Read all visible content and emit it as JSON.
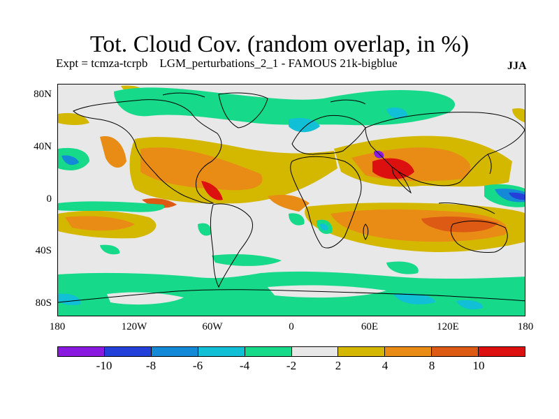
{
  "title": "Tot. Cloud Cov. (random overlap, in %)",
  "subtitle": "Expt = tcmza-tcrpb    LGM_perturbations_2_1 - FAMOUS 21k-bigblue",
  "season": "JJA",
  "lat_labels": [
    "80N",
    "40N",
    "0",
    "40S",
    "80S"
  ],
  "lon_labels": [
    "180",
    "120W",
    "60W",
    "0",
    "60E",
    "120E",
    "180"
  ],
  "colorbar": {
    "colors": [
      "#8a1adf",
      "#2341d8",
      "#1489d7",
      "#11bfd6",
      "#16d98a",
      "#e8e8e8",
      "#d4b800",
      "#e98c16",
      "#dd5a14",
      "#dd1010"
    ],
    "labels": [
      "-10",
      "-8",
      "-6",
      "-4",
      "-2",
      "2",
      "4",
      "8",
      "10"
    ]
  },
  "map_colors": {
    "background": "#e8e8e8",
    "teal": "#16d98a",
    "cyan": "#11bfd6",
    "blue": "#1489d7",
    "darkblue": "#2341d8",
    "purple": "#8a1adf",
    "yellow": "#d4b800",
    "orange": "#e98c16",
    "darkorange": "#dd5a14",
    "red": "#dd1010"
  }
}
